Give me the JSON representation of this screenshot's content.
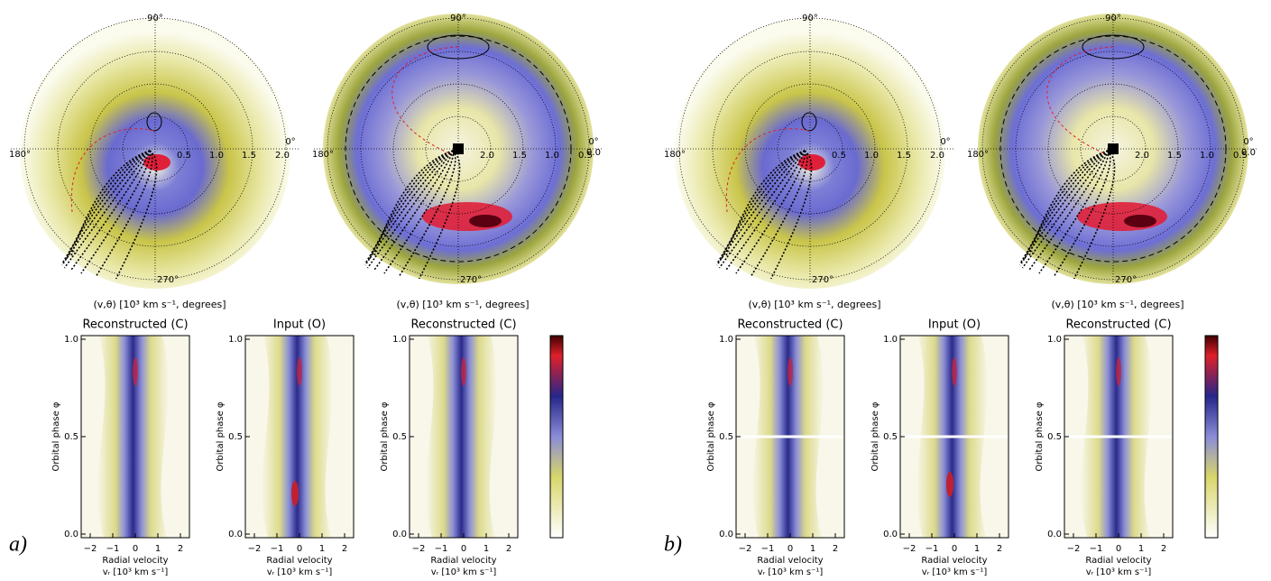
{
  "panels": [
    {
      "label": "a)",
      "maps": [
        {
          "north": "90°",
          "east": "0°",
          "west": "180°",
          "south": "270°",
          "radii": [
            "0.5",
            "1.0",
            "1.5",
            "2.0"
          ],
          "caption": "(v,θ) [10³ km s⁻¹, degrees]"
        },
        {
          "north": "90°",
          "east": "0°",
          "east_radius": "0.0",
          "west": "180°",
          "south": "270°",
          "radii": [
            "2.0",
            "1.5",
            "1.0",
            "0.5"
          ],
          "caption": "(v,θ) [10³ km s⁻¹, degrees]"
        }
      ],
      "spectra": [
        {
          "title": "Reconstructed (C)",
          "ylabel": "Orbital phase φ",
          "yticks": [
            "0.0",
            "0.5",
            "1.0"
          ],
          "xticks": [
            "−2",
            "−1",
            "0",
            "1",
            "2"
          ],
          "xlabel": "Radial velocity",
          "xunit": "vᵣ [10³ km s⁻¹]"
        },
        {
          "title": "Input (O)",
          "ylabel": "Orbital phase φ",
          "yticks": [
            "0.0",
            "0.5",
            "1.0"
          ],
          "xticks": [
            "−2",
            "−1",
            "0",
            "1",
            "2"
          ],
          "xlabel": "Radial velocity",
          "xunit": "vᵣ [10³ km s⁻¹]"
        },
        {
          "title": "Reconstructed (C)",
          "ylabel": "Orbital phase φ",
          "yticks": [
            "0.0",
            "0.5",
            "1.0"
          ],
          "xticks": [
            "−2",
            "−1",
            "0",
            "1",
            "2"
          ],
          "xlabel": "Radial velocity",
          "xunit": "vᵣ [10³ km s⁻¹]"
        }
      ]
    },
    {
      "label": "b)",
      "maps": [
        {
          "north": "90°",
          "east": "0°",
          "west": "180°",
          "south": "270°",
          "radii": [
            "0.5",
            "1.0",
            "1.5",
            "2.0"
          ],
          "caption": "(v,θ) [10³ km s⁻¹, degrees]"
        },
        {
          "north": "90°",
          "east": "0°",
          "east_radius": "0.0",
          "west": "180°",
          "south": "270°",
          "radii": [
            "2.0",
            "1.5",
            "1.0",
            "0.5"
          ],
          "caption": "(v,θ) [10³ km s⁻¹, degrees]"
        }
      ],
      "spectra": [
        {
          "title": "Reconstructed (C)",
          "ylabel": "Orbital phase φ",
          "yticks": [
            "0.0",
            "0.5",
            "1.0"
          ],
          "xticks": [
            "−2",
            "−1",
            "0",
            "1",
            "2"
          ],
          "xlabel": "Radial velocity",
          "xunit": "vᵣ [10³ km s⁻¹]"
        },
        {
          "title": "Input (O)",
          "ylabel": "Orbital phase φ",
          "yticks": [
            "0.0",
            "0.5",
            "1.0"
          ],
          "xticks": [
            "−2",
            "−1",
            "0",
            "1",
            "2"
          ],
          "xlabel": "Radial velocity",
          "xunit": "vᵣ [10³ km s⁻¹]"
        },
        {
          "title": "Reconstructed (C)",
          "ylabel": "Orbital phase φ",
          "yticks": [
            "0.0",
            "0.5",
            "1.0"
          ],
          "xticks": [
            "−2",
            "−1",
            "0",
            "1",
            "2"
          ],
          "xlabel": "Radial velocity",
          "xunit": "vᵣ [10³ km s⁻¹]"
        }
      ]
    }
  ]
}
